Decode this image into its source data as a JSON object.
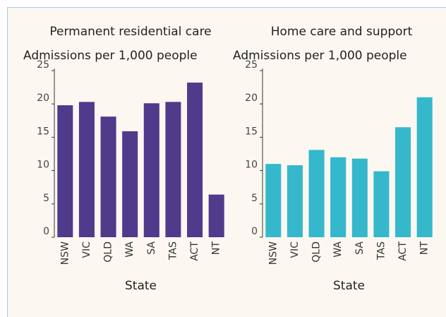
{
  "chart_data": [
    {
      "type": "bar",
      "title": "Permanent residential care",
      "y_label": "Admissions per 1,000 people",
      "x_label": "State",
      "categories": [
        "NSW",
        "VIC",
        "QLD",
        "WA",
        "SA",
        "TAS",
        "ACT",
        "NT"
      ],
      "values": [
        19.8,
        20.3,
        18.1,
        15.9,
        20.1,
        20.3,
        23.2,
        6.4
      ],
      "color": "#4f3a8c",
      "ylim": [
        0,
        25
      ],
      "yticks": [
        0,
        5,
        10,
        15,
        20,
        25
      ]
    },
    {
      "type": "bar",
      "title": "Home care and support",
      "y_label": "Admissions per 1,000 people",
      "x_label": "State",
      "categories": [
        "NSW",
        "VIC",
        "QLD",
        "WA",
        "SA",
        "TAS",
        "ACT",
        "NT"
      ],
      "values": [
        11.0,
        10.8,
        13.1,
        12.0,
        11.8,
        9.9,
        16.5,
        21.0
      ],
      "color": "#35b8cb",
      "ylim": [
        0,
        25
      ],
      "yticks": [
        0,
        5,
        10,
        15,
        20,
        25
      ]
    }
  ]
}
